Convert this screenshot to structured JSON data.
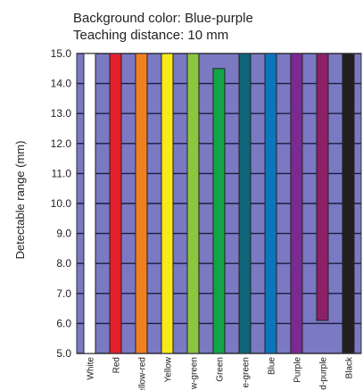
{
  "header": {
    "background_line": "Background color: Blue-purple",
    "distance_line": "Teaching distance: 10 mm"
  },
  "chart_data": {
    "type": "bar",
    "ylabel": "Detectable range (mm)",
    "ylim": [
      5.0,
      15.0
    ],
    "yticks": [
      "5.0",
      "6.0",
      "7.0",
      "8.0",
      "9.0",
      "10.0",
      "11.0",
      "12.0",
      "13.0",
      "14.0",
      "15.0"
    ],
    "categories": [
      "White",
      "Red",
      "Yellow-red",
      "Yellow",
      "Yellow-green",
      "Green",
      "Blue-green",
      "Blue",
      "Purple",
      "Red-purple",
      "Black"
    ],
    "category_labels_visible": [
      "White",
      "Red",
      "ellow-red",
      "Yellow",
      "w-green",
      "Green",
      "e-green",
      "Blue",
      "Purple",
      "d-purple",
      "Black"
    ],
    "ranges": [
      {
        "min": 5.0,
        "max": 15.0
      },
      {
        "min": 5.0,
        "max": 15.0
      },
      {
        "min": 5.0,
        "max": 15.0
      },
      {
        "min": 5.0,
        "max": 15.0
      },
      {
        "min": 5.0,
        "max": 15.0
      },
      {
        "min": 5.0,
        "max": 14.5
      },
      {
        "min": 5.0,
        "max": 15.0
      },
      {
        "min": 5.0,
        "max": 15.0
      },
      {
        "min": 5.0,
        "max": 15.0
      },
      {
        "min": 6.1,
        "max": 15.0
      },
      {
        "min": 5.0,
        "max": 15.0
      }
    ],
    "colors": [
      "#ffffff",
      "#e3202c",
      "#f07f20",
      "#f7ea16",
      "#8cc63e",
      "#11a548",
      "#0e6577",
      "#0b76bd",
      "#7a2a90",
      "#8b2167",
      "#231f20"
    ],
    "background_color": "#7a79c2",
    "grid": true
  }
}
